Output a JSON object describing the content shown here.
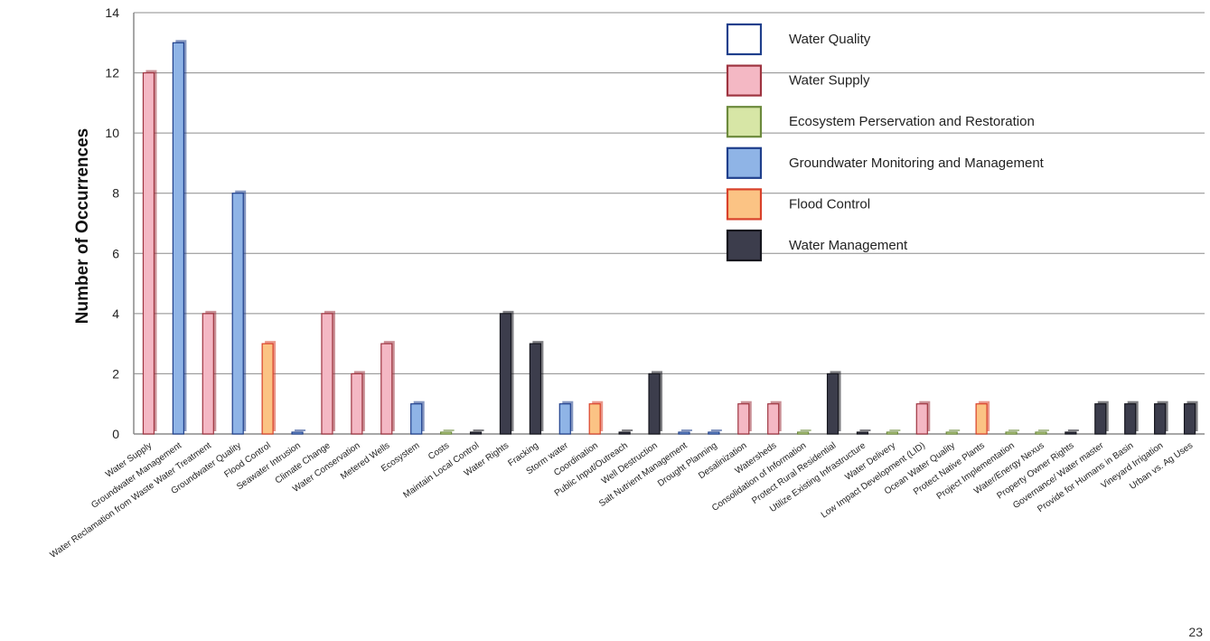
{
  "page_number": "23",
  "chart_data": {
    "type": "bar",
    "title": "",
    "xlabel": "",
    "ylabel": "Number of Occurrences",
    "ylim": [
      0,
      14
    ],
    "yticks": [
      0,
      2,
      4,
      6,
      8,
      10,
      12,
      14
    ],
    "grid": true,
    "legend_position": "top-right",
    "categories": [
      "Water Supply",
      "Groundwater Management",
      "Water Reclamation from Waste Water Treatment",
      "Groundwater Quality",
      "Flood Control",
      "Seawater Intrusion",
      "Climate Change",
      "Water Conservation",
      "Metered Wells",
      "Ecosystem",
      "Costs",
      "Maintain Local Control",
      "Water Rights",
      "Fracking",
      "Storm water",
      "Coordination",
      "Public Input/Outreach",
      "Well Destruction",
      "Salt Nutrient Management",
      "Drought Planning",
      "Desalinization",
      "Watersheds",
      "Consolidation of Information",
      "Protect Rural Residential",
      "Utilize Existing Infrastructure",
      "Water Delivery",
      "Low Impact Development (LID)",
      "Ocean Water Quality",
      "Protect Native Plants",
      "Project Implementation",
      "Water/Energy Nexus",
      "Property Owner Rights",
      "Governance/ Water master",
      "Provide for Humans in Basin",
      "Vineyard Irrigation",
      "Urban vs. Ag Uses"
    ],
    "values": [
      12,
      13,
      4,
      8,
      3,
      0,
      4,
      2,
      3,
      1,
      0,
      0,
      4,
      3,
      1,
      1,
      0,
      2,
      0,
      0,
      1,
      1,
      0,
      2,
      0,
      0,
      1,
      0,
      1,
      0,
      0,
      0,
      1,
      1,
      1,
      1
    ],
    "bar_groups": [
      "Water Supply",
      "Groundwater Monitoring and Management",
      "Water Supply",
      "Groundwater Monitoring and Management",
      "Flood Control",
      "Groundwater Monitoring and Management",
      "Water Supply",
      "Water Supply",
      "Water Supply",
      "Groundwater Monitoring and Management",
      "Ecosystem Perservation and Restoration",
      "Water Management",
      "Water Management",
      "Water Management",
      "Groundwater Monitoring and Management",
      "Flood Control",
      "Water Management",
      "Water Management",
      "Groundwater Monitoring and Management",
      "Groundwater Monitoring and Management",
      "Water Supply",
      "Water Supply",
      "Ecosystem Perservation and Restoration",
      "Water Management",
      "Water Management",
      "Ecosystem Perservation and Restoration",
      "Water Supply",
      "Ecosystem Perservation and Restoration",
      "Flood Control",
      "Ecosystem Perservation and Restoration",
      "Ecosystem Perservation and Restoration",
      "Water Management",
      "Water Management",
      "Water Management",
      "Water Management",
      "Water Management"
    ],
    "legend": [
      {
        "name": "Water Quality",
        "fill": "#ffffff",
        "stroke": "#1f3f8c"
      },
      {
        "name": "Water Supply",
        "fill": "#f4b8c4",
        "stroke": "#9e3440"
      },
      {
        "name": "Ecosystem Perservation and Restoration",
        "fill": "#d7e6a6",
        "stroke": "#6c8a3c"
      },
      {
        "name": "Groundwater Monitoring and Management",
        "fill": "#8fb4e6",
        "stroke": "#1f3f8c"
      },
      {
        "name": "Flood Control",
        "fill": "#fbc384",
        "stroke": "#d9412a"
      },
      {
        "name": "Water Management",
        "fill": "#3c3d4c",
        "stroke": "#15161e"
      }
    ]
  }
}
